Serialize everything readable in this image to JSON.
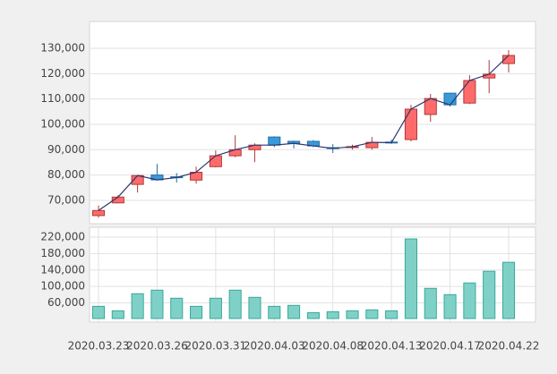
{
  "chart_data": [
    {
      "type": "candlestick",
      "open": [
        64000,
        69000,
        76300,
        80000,
        79300,
        78000,
        83300,
        87600,
        90000,
        95000,
        93300,
        93300,
        90800,
        91000,
        90800,
        93000,
        94000,
        103900,
        112300,
        108400,
        118300,
        124000
      ],
      "high": [
        68000,
        72000,
        80000,
        84400,
        80800,
        83300,
        89700,
        95700,
        92500,
        95300,
        93600,
        93800,
        92200,
        92000,
        95000,
        94000,
        107700,
        112000,
        112500,
        119400,
        125400,
        129300
      ],
      "low": [
        63200,
        68900,
        73100,
        77800,
        77000,
        76600,
        83000,
        87000,
        85100,
        91000,
        90500,
        91000,
        88700,
        90000,
        90000,
        92300,
        93300,
        101000,
        107000,
        108000,
        112300,
        120500
      ],
      "close": [
        66000,
        71300,
        79800,
        78100,
        79000,
        81100,
        87600,
        90000,
        91800,
        91800,
        92500,
        91500,
        90500,
        91200,
        92900,
        92800,
        106000,
        110200,
        107700,
        117300,
        119800,
        127200
      ],
      "up_color": "#ff6b6b",
      "down_color": "#3a9ad9",
      "line_color": "#2d3570",
      "ylim": [
        60800,
        140600
      ],
      "yticks": [
        {
          "value": 70000,
          "label": "70,000"
        },
        {
          "value": 80000,
          "label": "80,000"
        },
        {
          "value": 90000,
          "label": "90,000"
        },
        {
          "value": 100000,
          "label": "100,000"
        },
        {
          "value": 110000,
          "label": "110,000"
        },
        {
          "value": 120000,
          "label": "120,000"
        },
        {
          "value": 130000,
          "label": "130,000"
        }
      ],
      "grid": true
    },
    {
      "type": "bar",
      "categories": [
        "2020.03.23",
        null,
        null,
        "2020.03.26",
        null,
        null,
        "2020.03.31",
        null,
        null,
        "2020.04.03",
        null,
        null,
        "2020.04.08",
        null,
        null,
        "2020.04.13",
        null,
        null,
        "2020.04.17",
        null,
        null,
        "2020.04.22"
      ],
      "values": [
        51700,
        40800,
        82300,
        91000,
        71400,
        51700,
        71400,
        91000,
        73600,
        51700,
        54000,
        36400,
        38600,
        40800,
        43000,
        40800,
        215600,
        95400,
        80100,
        108500,
        137000,
        158800
      ],
      "color": "#7fd1c7",
      "ylim": [
        22000,
        244000
      ],
      "yticks": [
        {
          "value": 60000,
          "label": "60,000"
        },
        {
          "value": 100000,
          "label": "100,000"
        },
        {
          "value": 140000,
          "label": "140,000"
        },
        {
          "value": 180000,
          "label": "180,000"
        },
        {
          "value": 220000,
          "label": "220,000"
        }
      ],
      "grid": true
    }
  ]
}
